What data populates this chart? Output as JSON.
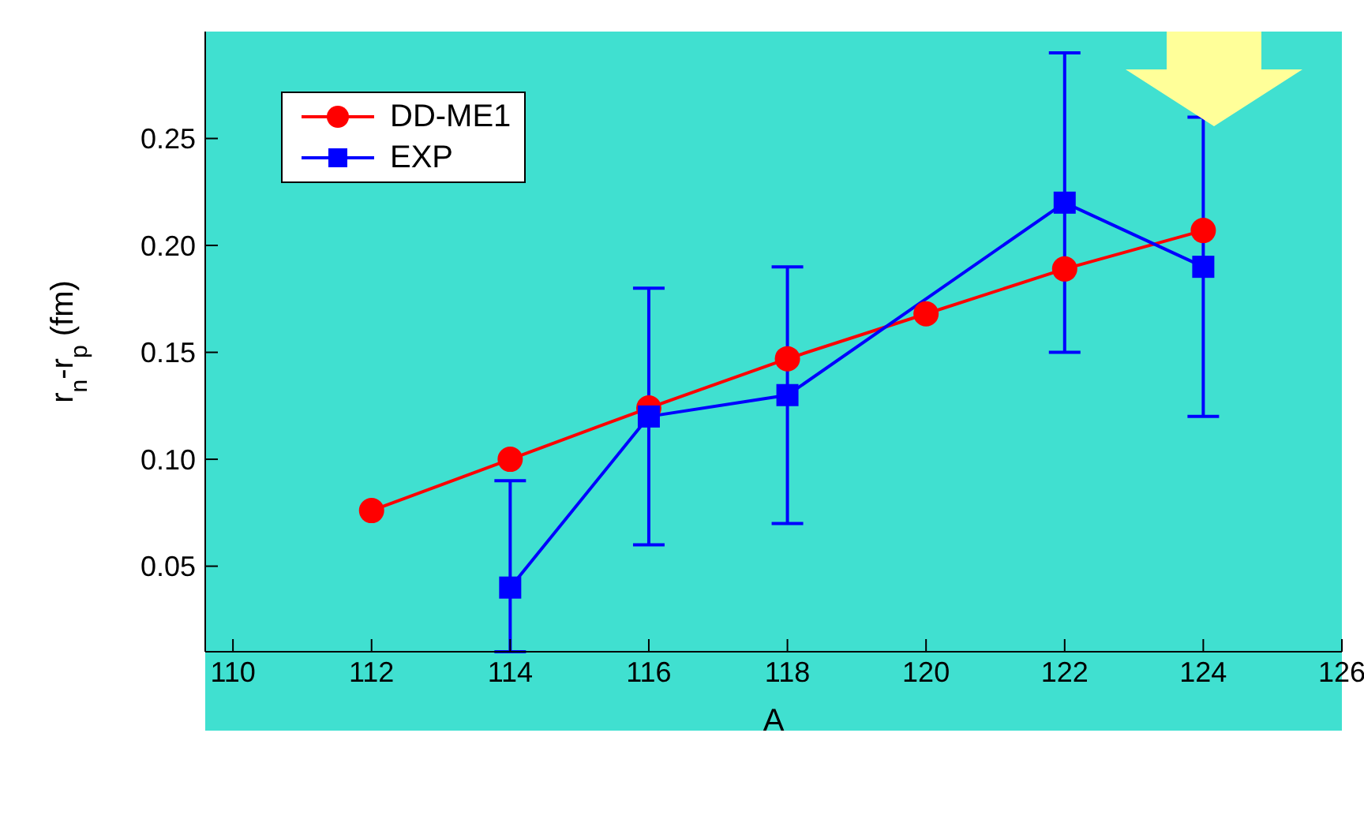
{
  "chart_data": {
    "type": "line",
    "xlabel": "A",
    "ylabel": "r$_{n}$-r$_{p}$ (fm)",
    "xlim": [
      109.6,
      126
    ],
    "xticks": [
      110,
      112,
      114,
      116,
      118,
      120,
      122,
      124,
      126
    ],
    "ylim": [
      0.01,
      0.3
    ],
    "yticks": [
      {
        "value": 0.05,
        "label": "0.05"
      },
      {
        "value": 0.1,
        "label": "0.10"
      },
      {
        "value": 0.15,
        "label": "0.15"
      },
      {
        "value": 0.2,
        "label": "0.20"
      },
      {
        "value": 0.25,
        "label": "0.25"
      }
    ],
    "grid": false,
    "legend": "top left",
    "line_style": "solid",
    "series": [
      {
        "name": "DD-ME1",
        "color": "#ff0000",
        "marker": "circle",
        "x": [
          112,
          114,
          116,
          118,
          120,
          122,
          124
        ],
        "values": [
          0.076,
          0.1,
          0.124,
          0.147,
          0.168,
          0.189,
          0.207
        ]
      },
      {
        "name": "EXP",
        "color": "#0000ff",
        "marker": "square",
        "x": [
          114,
          116,
          118,
          122,
          124
        ],
        "values": [
          0.04,
          0.12,
          0.13,
          0.22,
          0.19
        ],
        "errors": [
          [
            0.01,
            0.09
          ],
          0.06,
          0.06,
          0.07,
          0.07
        ]
      }
    ]
  }
}
